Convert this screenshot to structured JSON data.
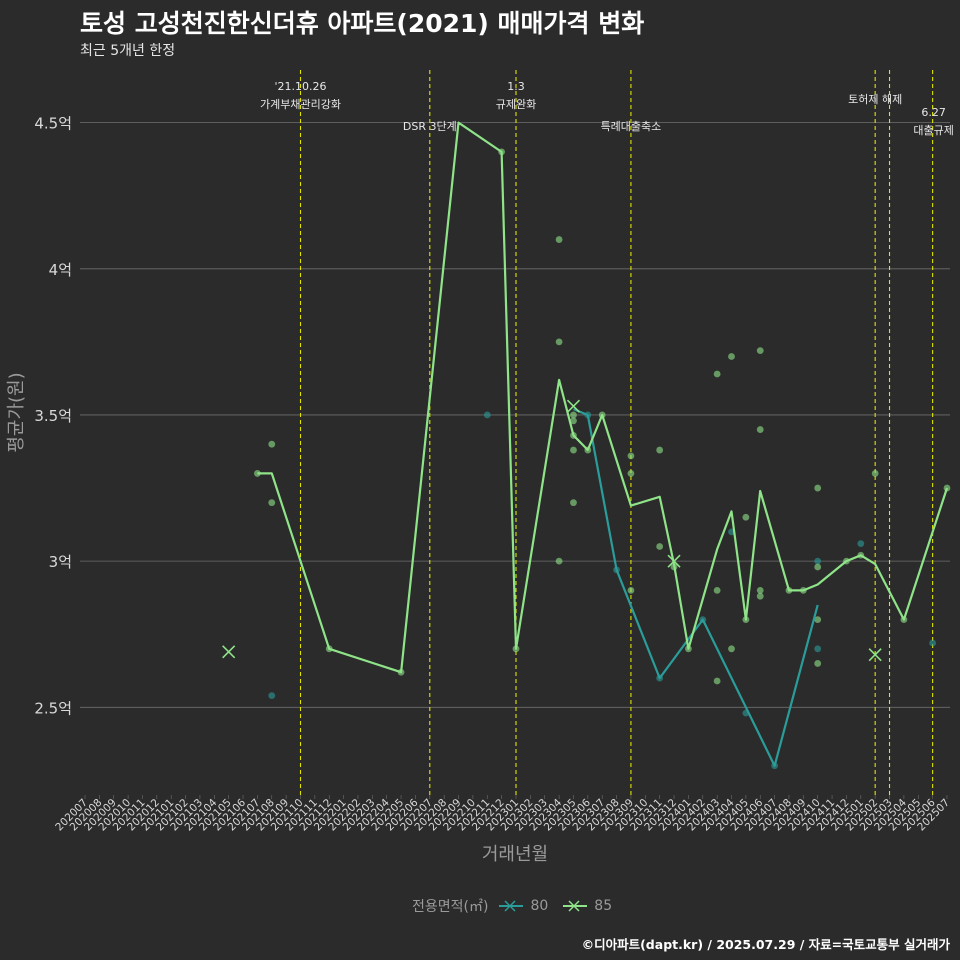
{
  "title": "토성 고성천진한신더휴 아파트(2021) 매매가격 변화",
  "subtitle": "최근 5개년 한정",
  "caption": "©디아파트(dapt.kr) / 2025.07.29 / 자료=국토교통부 실거래가",
  "legend": {
    "title": "전용면적(㎡)",
    "items": [
      {
        "label": "80",
        "color": "#2a9d9a"
      },
      {
        "label": "85",
        "color": "#8fe388"
      }
    ]
  },
  "chart_data": {
    "type": "line",
    "xlabel": "거래년월",
    "ylabel": "평균가(원)",
    "ylim": [
      2.2,
      4.68
    ],
    "y_ticks": [
      {
        "value": 2.5,
        "label": "2.5억"
      },
      {
        "value": 3.0,
        "label": "3억"
      },
      {
        "value": 3.5,
        "label": "3.5억"
      },
      {
        "value": 4.0,
        "label": "4억"
      },
      {
        "value": 4.5,
        "label": "4.5억"
      }
    ],
    "x_categories": [
      "202007",
      "202008",
      "202009",
      "202010",
      "202011",
      "202012",
      "202101",
      "202102",
      "202103",
      "202104",
      "202105",
      "202106",
      "202107",
      "202108",
      "202109",
      "202110",
      "202111",
      "202112",
      "202201",
      "202202",
      "202203",
      "202204",
      "202205",
      "202206",
      "202207",
      "202208",
      "202209",
      "202210",
      "202211",
      "202212",
      "202301",
      "202302",
      "202303",
      "202304",
      "202305",
      "202306",
      "202307",
      "202308",
      "202309",
      "202310",
      "202311",
      "202312",
      "202401",
      "202402",
      "202403",
      "202404",
      "202405",
      "202406",
      "202407",
      "202408",
      "202409",
      "202410",
      "202411",
      "202412",
      "202501",
      "202502",
      "202503",
      "202504",
      "202505",
      "202506",
      "202507"
    ],
    "grid": true,
    "legend_position": "bottom",
    "events": [
      {
        "x": "202110",
        "label": "'21.10.26\n가계부채관리강화",
        "label_row": 1
      },
      {
        "x": "202207",
        "label": "DSR 3단계",
        "label_row": 2
      },
      {
        "x": "202301",
        "label": "1.3\n규제완화",
        "label_row": 1
      },
      {
        "x": "202309",
        "label": "특례대출축소",
        "label_row": 2
      },
      {
        "x": "202502",
        "label": "토허제 해제",
        "label_row": 1
      },
      {
        "x": "202503",
        "label": "",
        "label_row": 1
      },
      {
        "x": "202506",
        "label": "6.27\n대출규제",
        "label_row": 3
      }
    ],
    "series": [
      {
        "name": "80",
        "color": "#2a9d9a",
        "line": [
          {
            "x": "202305",
            "y": 3.52
          },
          {
            "x": "202306",
            "y": 3.5
          },
          {
            "x": "202308",
            "y": 2.97
          },
          {
            "x": "202311",
            "y": 2.6
          },
          {
            "x": "202402",
            "y": 2.8
          },
          {
            "x": "202407",
            "y": 2.3
          },
          {
            "x": "202410",
            "y": 2.85
          }
        ],
        "points": [
          {
            "x": "202108",
            "y": 2.54
          },
          {
            "x": "202211",
            "y": 3.5
          },
          {
            "x": "202306",
            "y": 3.5
          },
          {
            "x": "202308",
            "y": 2.97
          },
          {
            "x": "202311",
            "y": 2.6
          },
          {
            "x": "202402",
            "y": 2.8
          },
          {
            "x": "202404",
            "y": 3.1
          },
          {
            "x": "202405",
            "y": 2.48
          },
          {
            "x": "202407",
            "y": 2.3
          },
          {
            "x": "202410",
            "y": 3.0
          },
          {
            "x": "202410",
            "y": 2.7
          },
          {
            "x": "202501",
            "y": 3.06
          },
          {
            "x": "202506",
            "y": 2.72
          }
        ],
        "crosses": []
      },
      {
        "name": "85",
        "color": "#8fe388",
        "line": [
          {
            "x": "202107",
            "y": 3.3
          },
          {
            "x": "202108",
            "y": 3.3
          },
          {
            "x": "202112",
            "y": 2.7
          },
          {
            "x": "202205",
            "y": 2.62
          },
          {
            "x": "202209",
            "y": 4.5
          },
          {
            "x": "202212",
            "y": 4.4
          },
          {
            "x": "202301",
            "y": 2.7
          },
          {
            "x": "202304",
            "y": 3.62
          },
          {
            "x": "202305",
            "y": 3.43
          },
          {
            "x": "202306",
            "y": 3.38
          },
          {
            "x": "202307",
            "y": 3.5
          },
          {
            "x": "202309",
            "y": 3.19
          },
          {
            "x": "202311",
            "y": 3.22
          },
          {
            "x": "202312",
            "y": 2.99
          },
          {
            "x": "202401",
            "y": 2.7
          },
          {
            "x": "202403",
            "y": 3.04
          },
          {
            "x": "202404",
            "y": 3.17
          },
          {
            "x": "202405",
            "y": 2.8
          },
          {
            "x": "202406",
            "y": 3.24
          },
          {
            "x": "202408",
            "y": 2.9
          },
          {
            "x": "202409",
            "y": 2.9
          },
          {
            "x": "202410",
            "y": 2.92
          },
          {
            "x": "202412",
            "y": 3.0
          },
          {
            "x": "202501",
            "y": 3.02
          },
          {
            "x": "202502",
            "y": 2.99
          },
          {
            "x": "202504",
            "y": 2.8
          },
          {
            "x": "202507",
            "y": 3.25
          }
        ],
        "points": [
          {
            "x": "202107",
            "y": 3.3
          },
          {
            "x": "202108",
            "y": 3.4
          },
          {
            "x": "202108",
            "y": 3.2
          },
          {
            "x": "202112",
            "y": 2.7
          },
          {
            "x": "202205",
            "y": 2.62
          },
          {
            "x": "202212",
            "y": 4.4
          },
          {
            "x": "202301",
            "y": 2.7
          },
          {
            "x": "202304",
            "y": 4.1
          },
          {
            "x": "202304",
            "y": 3.75
          },
          {
            "x": "202304",
            "y": 3.0
          },
          {
            "x": "202305",
            "y": 3.5
          },
          {
            "x": "202305",
            "y": 3.48
          },
          {
            "x": "202305",
            "y": 3.43
          },
          {
            "x": "202305",
            "y": 3.38
          },
          {
            "x": "202305",
            "y": 3.2
          },
          {
            "x": "202306",
            "y": 3.38
          },
          {
            "x": "202307",
            "y": 3.5
          },
          {
            "x": "202309",
            "y": 3.36
          },
          {
            "x": "202309",
            "y": 3.3
          },
          {
            "x": "202309",
            "y": 2.9
          },
          {
            "x": "202311",
            "y": 3.38
          },
          {
            "x": "202311",
            "y": 3.05
          },
          {
            "x": "202312",
            "y": 2.98
          },
          {
            "x": "202401",
            "y": 2.7
          },
          {
            "x": "202403",
            "y": 3.64
          },
          {
            "x": "202403",
            "y": 2.9
          },
          {
            "x": "202403",
            "y": 2.59
          },
          {
            "x": "202404",
            "y": 3.7
          },
          {
            "x": "202404",
            "y": 2.7
          },
          {
            "x": "202405",
            "y": 3.15
          },
          {
            "x": "202405",
            "y": 2.8
          },
          {
            "x": "202406",
            "y": 3.72
          },
          {
            "x": "202406",
            "y": 3.45
          },
          {
            "x": "202406",
            "y": 2.9
          },
          {
            "x": "202406",
            "y": 2.88
          },
          {
            "x": "202408",
            "y": 2.9
          },
          {
            "x": "202409",
            "y": 2.9
          },
          {
            "x": "202410",
            "y": 3.25
          },
          {
            "x": "202410",
            "y": 2.98
          },
          {
            "x": "202410",
            "y": 2.8
          },
          {
            "x": "202410",
            "y": 2.65
          },
          {
            "x": "202412",
            "y": 3.0
          },
          {
            "x": "202501",
            "y": 3.02
          },
          {
            "x": "202502",
            "y": 3.3
          },
          {
            "x": "202504",
            "y": 2.8
          },
          {
            "x": "202507",
            "y": 3.25
          }
        ],
        "crosses": [
          {
            "x": "202105",
            "y": 2.69
          },
          {
            "x": "202305",
            "y": 3.53
          },
          {
            "x": "202312",
            "y": 3.0
          },
          {
            "x": "202502",
            "y": 2.68
          }
        ]
      }
    ]
  }
}
